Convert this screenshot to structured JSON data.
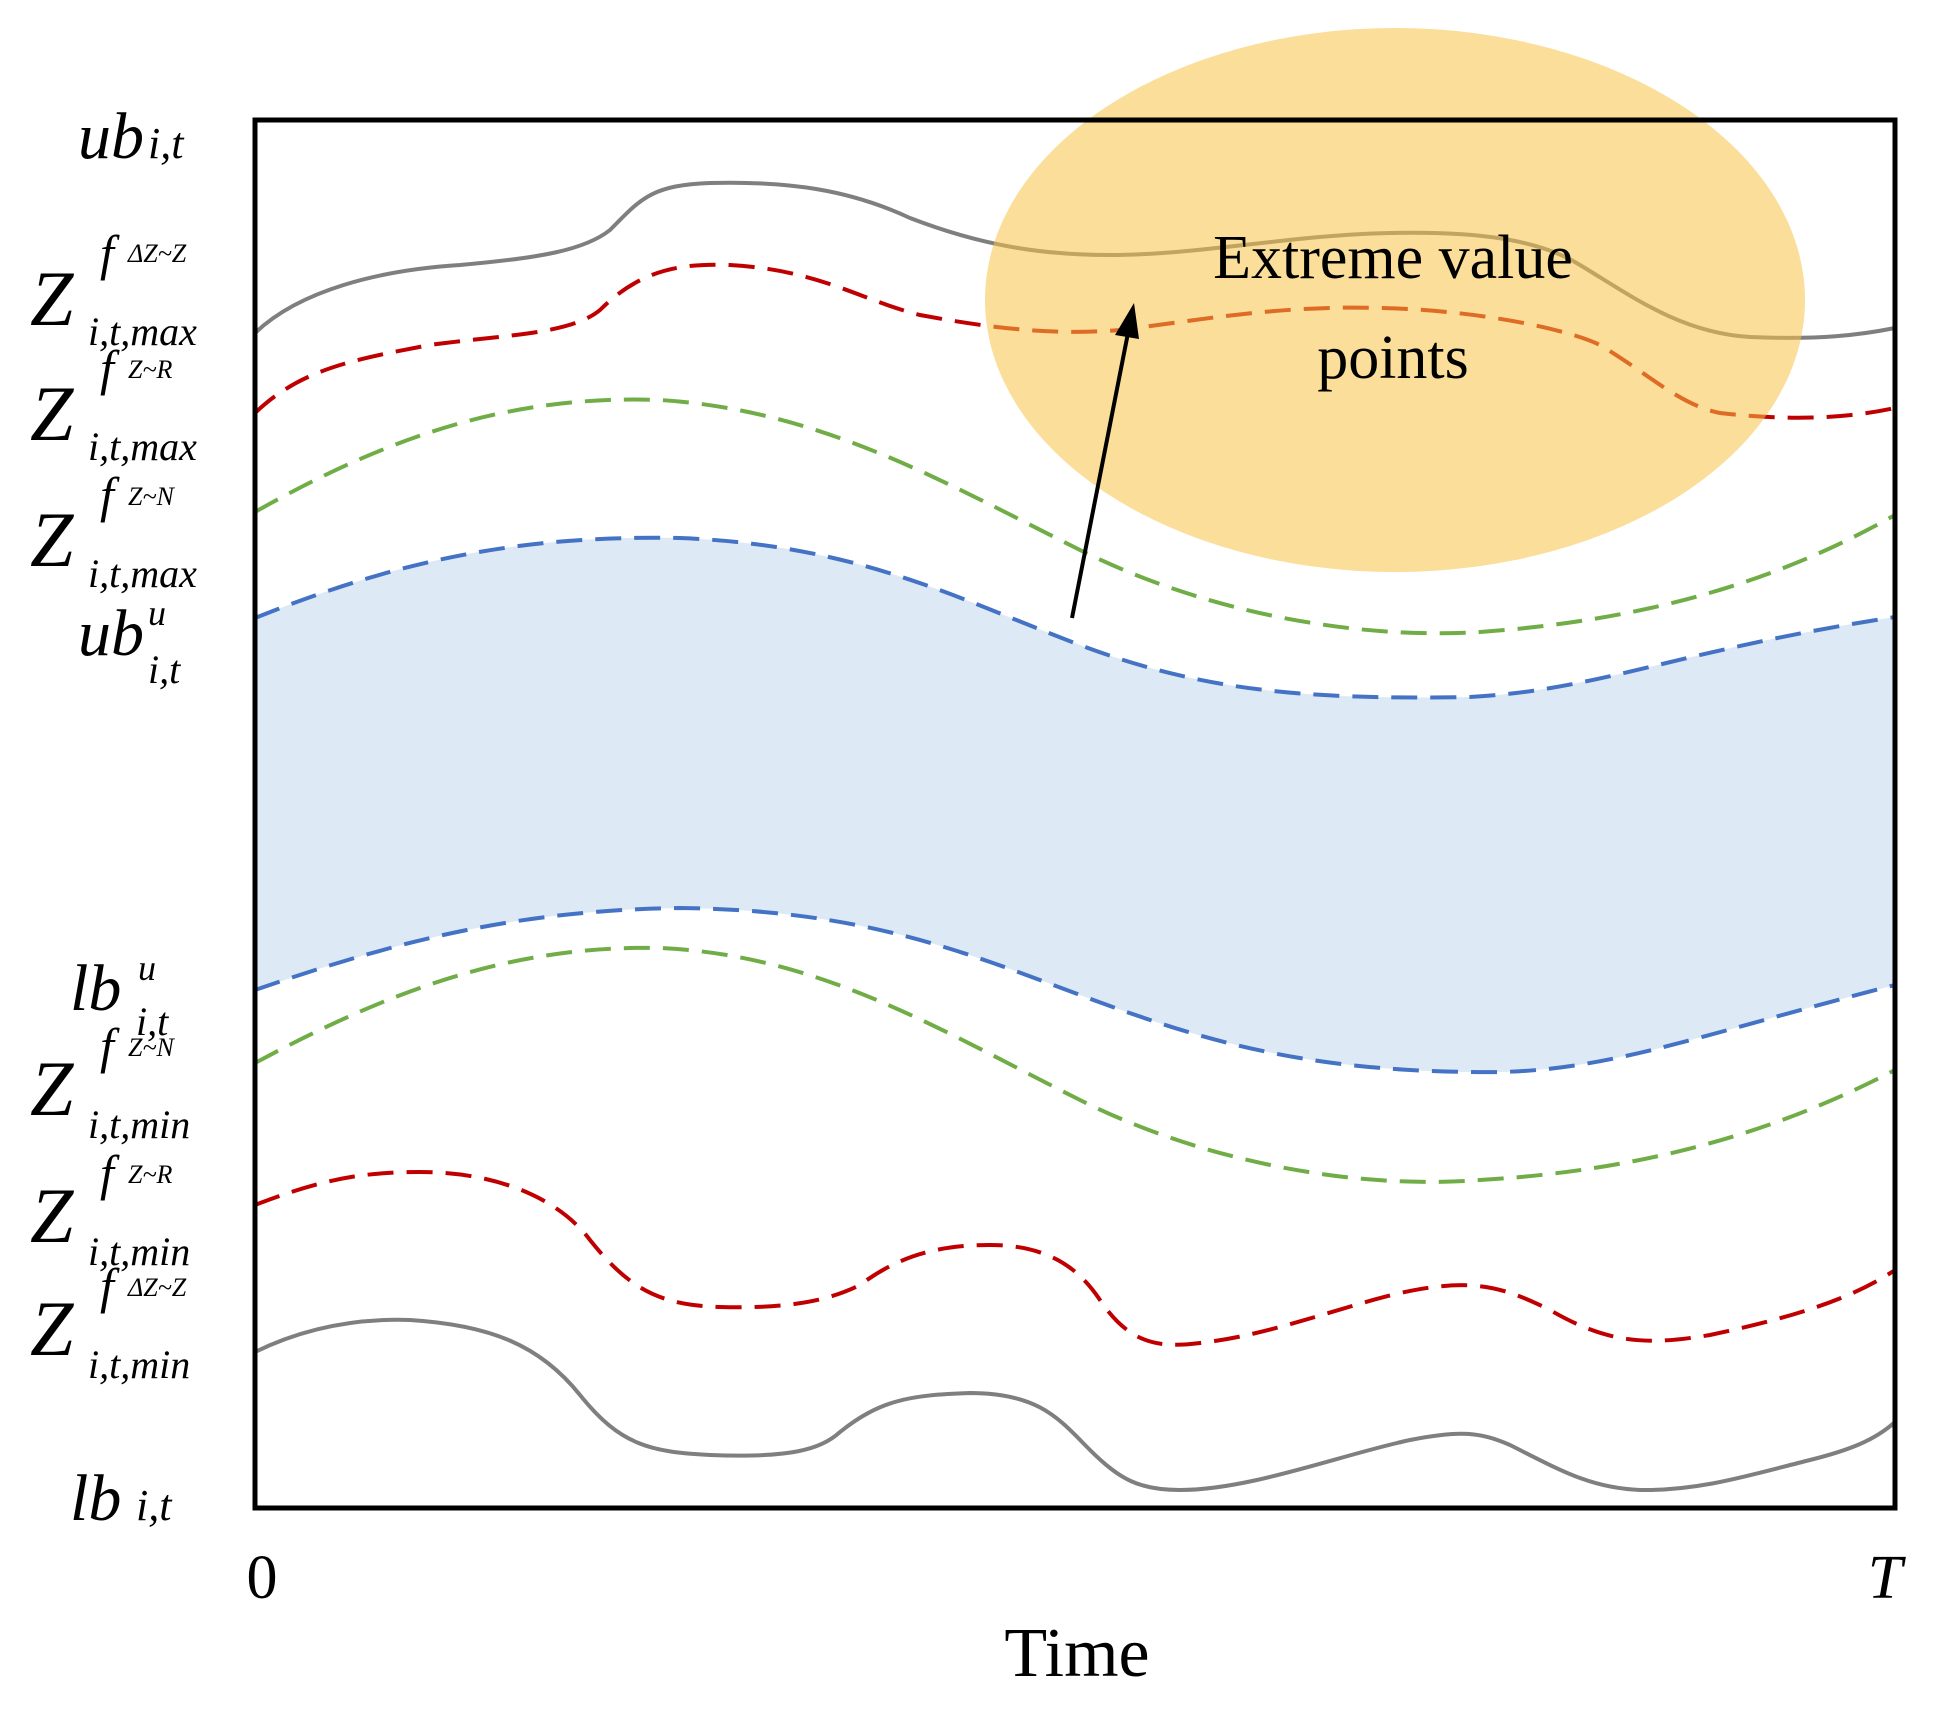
{
  "diagram": {
    "annotation": {
      "line1": "Extreme value",
      "line2": "points"
    },
    "x_axis": {
      "start": "0",
      "end": "T",
      "label": "Time"
    },
    "y_labels": {
      "ub": {
        "base": "ub",
        "sub": "i,t"
      },
      "z_dz_max": {
        "base": "Z",
        "sup_f": "f",
        "sup": "ΔZ~Z",
        "sub": "i,t,max"
      },
      "z_r_max": {
        "base": "Z",
        "sup_f": "f",
        "sup": "Z~R",
        "sub": "i,t,max"
      },
      "z_n_max": {
        "base": "Z",
        "sup_f": "f",
        "sup": "Z~N",
        "sub": "i,t,max"
      },
      "ub_u": {
        "base": "ub",
        "sup": "u",
        "sub": "i,t"
      },
      "lb_u": {
        "base": "lb",
        "sup": "u",
        "sub": "i,t"
      },
      "z_n_min": {
        "base": "Z",
        "sup_f": "f",
        "sup": "Z~N",
        "sub": "i,t,min"
      },
      "z_r_min": {
        "base": "Z",
        "sup_f": "f",
        "sup": "Z~R",
        "sub": "i,t,min"
      },
      "z_dz_min": {
        "base": "Z",
        "sup_f": "f",
        "sup": "ΔZ~Z",
        "sub": "i,t,min"
      },
      "lb": {
        "base": "lb",
        "sub": "i,t"
      }
    },
    "colors": {
      "frame": "#000000",
      "gray": "#808080",
      "red": "#c00000",
      "green": "#70ad47",
      "blue": "#4472c4",
      "band_fill": "#dde9f5",
      "ellipse_fill": "#f5c245",
      "arrow": "#000000"
    }
  }
}
